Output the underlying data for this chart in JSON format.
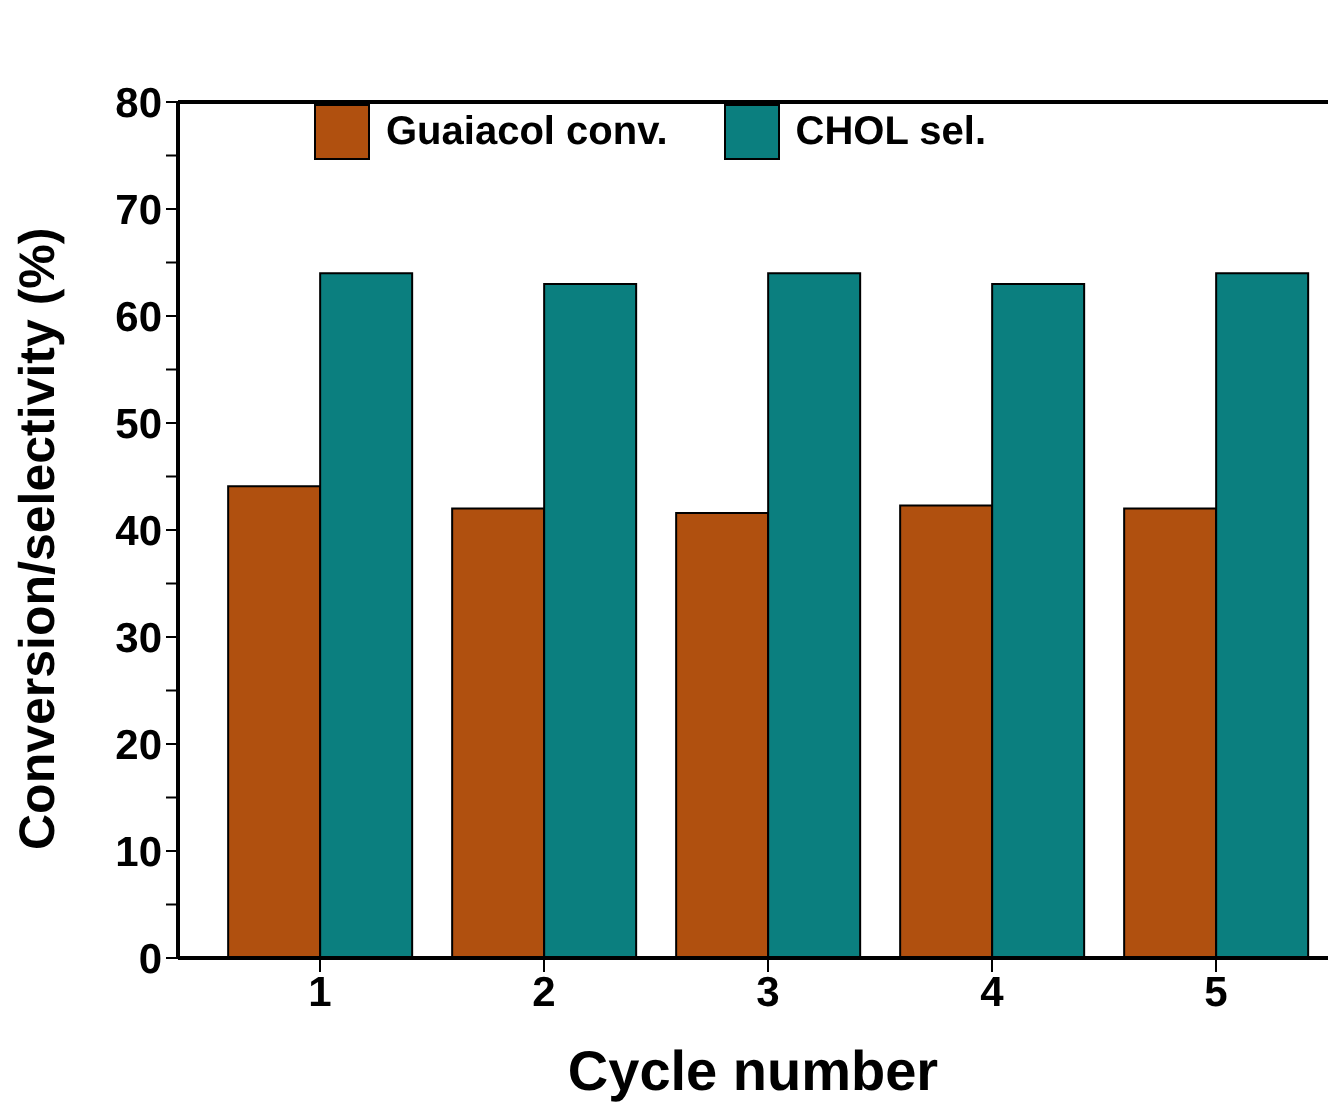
{
  "chart_data": {
    "type": "bar",
    "xlabel": "Cycle number",
    "ylabel": "Conversion/selectivity (%)",
    "categories": [
      "1",
      "2",
      "3",
      "4",
      "5"
    ],
    "series": [
      {
        "name": "Guaiacol conv.",
        "color": "#b0500f",
        "values": [
          44.1,
          42.0,
          41.6,
          42.3,
          42.0
        ]
      },
      {
        "name": "CHOL sel.",
        "color": "#0b7f7f",
        "values": [
          64,
          63,
          64,
          63,
          64
        ]
      }
    ],
    "ylim": [
      0,
      80
    ],
    "yticks": [
      0,
      {
        "value": 5,
        "label": null
      },
      10,
      {
        "value": 15,
        "label": null
      },
      20,
      {
        "value": 25,
        "label": null
      },
      30,
      {
        "value": 35,
        "label": null
      },
      40,
      {
        "value": 45,
        "label": null
      },
      50,
      {
        "value": 55,
        "label": null
      },
      60,
      {
        "value": 65,
        "label": null
      },
      70,
      {
        "value": 75,
        "label": null
      },
      80
    ],
    "legend": "top left",
    "grid": false
  }
}
